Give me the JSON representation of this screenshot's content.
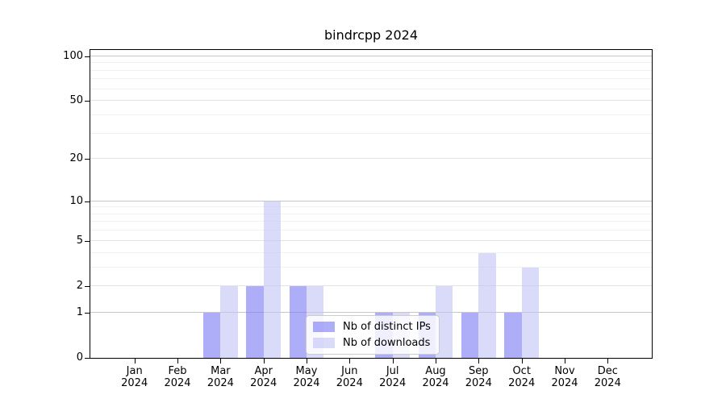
{
  "title": "bindrcpp 2024",
  "chart_data": {
    "type": "bar",
    "title": "bindrcpp 2024",
    "categories": [
      "Jan",
      "Feb",
      "Mar",
      "Apr",
      "May",
      "Jun",
      "Jul",
      "Aug",
      "Sep",
      "Oct",
      "Nov",
      "Dec"
    ],
    "x_year": "2024",
    "series": [
      {
        "name": "Nb of distinct IPs",
        "color": "#7b7bf3",
        "values": [
          0,
          0,
          1,
          2,
          2,
          0,
          1,
          1,
          1,
          1,
          0,
          0
        ]
      },
      {
        "name": "Nb of downloads",
        "color": "#c4c4f6",
        "values": [
          0,
          0,
          2,
          10,
          2,
          0,
          1,
          2,
          4,
          3,
          0,
          0
        ]
      }
    ],
    "yscale": "log10(1+v)",
    "ylim": [
      0,
      110
    ],
    "y_major_ticks": [
      0,
      1,
      2,
      5,
      10,
      20,
      50,
      100
    ],
    "y_minor_gridlines": [
      3,
      4,
      6,
      7,
      8,
      9,
      30,
      40,
      60,
      70,
      80,
      90
    ],
    "grid": true,
    "legend_position": "inside lower-center"
  },
  "colors": {
    "bar_distinct_ips": "#7b7bf3",
    "bar_downloads": "#c4c4f6",
    "bar_opacity": "0.62",
    "grid_decade": "#c6c6c6",
    "grid_major": "#e3e3e3",
    "grid_minor": "#f2f2f2",
    "axis": "#000000",
    "legend_border": "#cccccc"
  }
}
